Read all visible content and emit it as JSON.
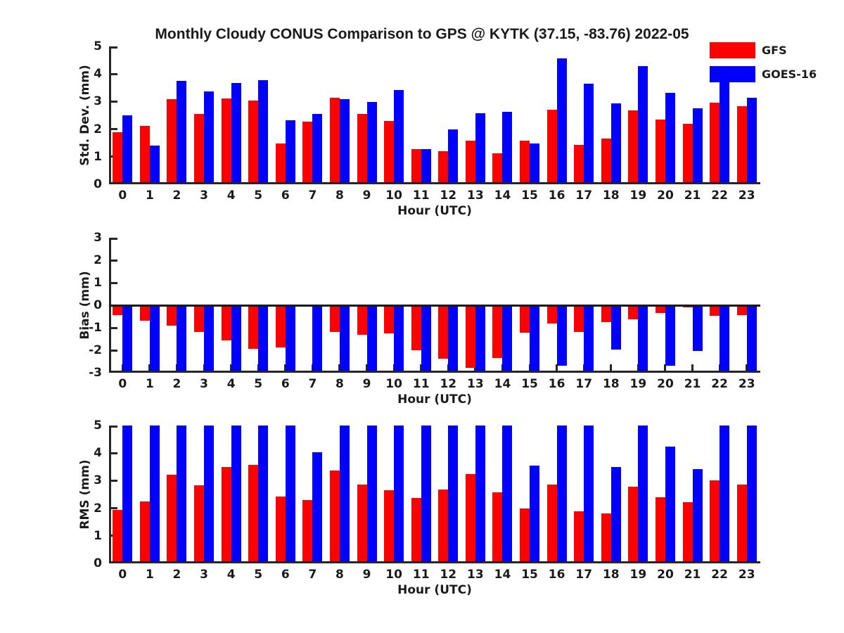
{
  "title": "Monthly Cloudy CONUS Comparison to GPS @ KYTK (37.15, -83.76) 2022-05",
  "legend": {
    "position": "top-right",
    "entries": [
      {
        "label": "GFS",
        "color": "#ff0000"
      },
      {
        "label": "GOES-16",
        "color": "#0000ff"
      }
    ]
  },
  "colors": {
    "gfs": "#ff0000",
    "goes16": "#0000ff",
    "axis": "#262626",
    "text": "#1a1a1a",
    "background": "#ffffff"
  },
  "chart_data": [
    {
      "type": "bar",
      "title": "Monthly Cloudy CONUS Comparison to GPS @ KYTK (37.15, -83.76) 2022-05",
      "ylabel": "Std. Dev. (mm)",
      "xlabel": "Hour (UTC)",
      "ylim": [
        0,
        5
      ],
      "yticks": [
        0,
        1,
        2,
        3,
        4,
        5
      ],
      "grid": false,
      "legend_position": "top-right",
      "categories": [
        "0",
        "1",
        "2",
        "3",
        "4",
        "5",
        "6",
        "7",
        "8",
        "9",
        "10",
        "11",
        "12",
        "13",
        "14",
        "15",
        "16",
        "17",
        "18",
        "19",
        "20",
        "21",
        "22",
        "23"
      ],
      "series": [
        {
          "name": "GFS",
          "color": "#ff0000",
          "values": [
            1.9,
            2.13,
            3.09,
            2.55,
            3.1,
            3.04,
            1.48,
            2.26,
            3.13,
            2.56,
            2.3,
            1.27,
            1.2,
            1.58,
            1.12,
            1.59,
            2.7,
            1.44,
            1.65,
            2.67,
            2.35,
            2.19,
            2.96,
            2.82
          ]
        },
        {
          "name": "GOES-16",
          "color": "#0000ff",
          "values": [
            2.5,
            1.4,
            3.75,
            3.38,
            3.67,
            3.77,
            2.33,
            2.55,
            3.08,
            2.99,
            3.42,
            1.28,
            1.99,
            2.58,
            2.64,
            1.48,
            4.57,
            3.66,
            2.93,
            4.28,
            3.32,
            2.76,
            4.04,
            3.13
          ]
        }
      ]
    },
    {
      "type": "bar",
      "ylabel": "Bias (mm)",
      "xlabel": "Hour (UTC)",
      "ylim": [
        -3,
        3
      ],
      "yticks": [
        -3,
        -2,
        -1,
        0,
        1,
        2,
        3
      ],
      "grid": false,
      "zero_line": true,
      "note": "GOES-16 bars shown at -3 are clipped at the axis limit",
      "categories": [
        "0",
        "1",
        "2",
        "3",
        "4",
        "5",
        "6",
        "7",
        "8",
        "9",
        "10",
        "11",
        "12",
        "13",
        "14",
        "15",
        "16",
        "17",
        "18",
        "19",
        "20",
        "21",
        "22",
        "23"
      ],
      "series": [
        {
          "name": "GFS",
          "color": "#ff0000",
          "values": [
            -0.43,
            -0.7,
            -0.9,
            -1.18,
            -1.57,
            -1.93,
            -1.88,
            0,
            -1.18,
            -1.31,
            -1.24,
            -2.0,
            -2.38,
            -2.77,
            -2.33,
            -1.22,
            -0.8,
            -1.18,
            -0.75,
            -0.64,
            -0.35,
            -0.08,
            -0.48,
            -0.43
          ]
        },
        {
          "name": "GOES-16",
          "color": "#0000ff",
          "values": [
            -3,
            -3,
            -3,
            -3,
            -3,
            -3,
            -3,
            -3,
            -3,
            -3,
            -3,
            -3,
            -3,
            -3,
            -3,
            -3,
            -2.7,
            -3,
            -1.96,
            -2.93,
            -2.7,
            -2.04,
            -3,
            -3
          ]
        }
      ]
    },
    {
      "type": "bar",
      "ylabel": "RMS (mm)",
      "xlabel": "Hour (UTC)",
      "ylim": [
        0,
        5
      ],
      "yticks": [
        0,
        1,
        2,
        3,
        4,
        5
      ],
      "grid": false,
      "note": "GOES-16 bars shown at 5 are clipped at the axis limit",
      "categories": [
        "0",
        "1",
        "2",
        "3",
        "4",
        "5",
        "6",
        "7",
        "8",
        "9",
        "10",
        "11",
        "12",
        "13",
        "14",
        "15",
        "16",
        "17",
        "18",
        "19",
        "20",
        "21",
        "22",
        "23"
      ],
      "series": [
        {
          "name": "GFS",
          "color": "#ff0000",
          "values": [
            1.95,
            2.25,
            3.21,
            2.83,
            3.49,
            3.58,
            2.42,
            2.3,
            3.38,
            2.85,
            2.66,
            2.38,
            2.67,
            3.23,
            2.58,
            1.99,
            2.85,
            1.88,
            1.82,
            2.78,
            2.39,
            2.21,
            3.01,
            2.86
          ]
        },
        {
          "name": "GOES-16",
          "color": "#0000ff",
          "values": [
            5,
            5,
            5,
            5,
            5,
            5,
            5,
            4.04,
            5,
            5,
            5,
            5,
            5,
            5,
            5,
            3.55,
            5,
            5,
            3.5,
            5,
            4.23,
            3.42,
            5,
            5
          ]
        }
      ]
    }
  ]
}
